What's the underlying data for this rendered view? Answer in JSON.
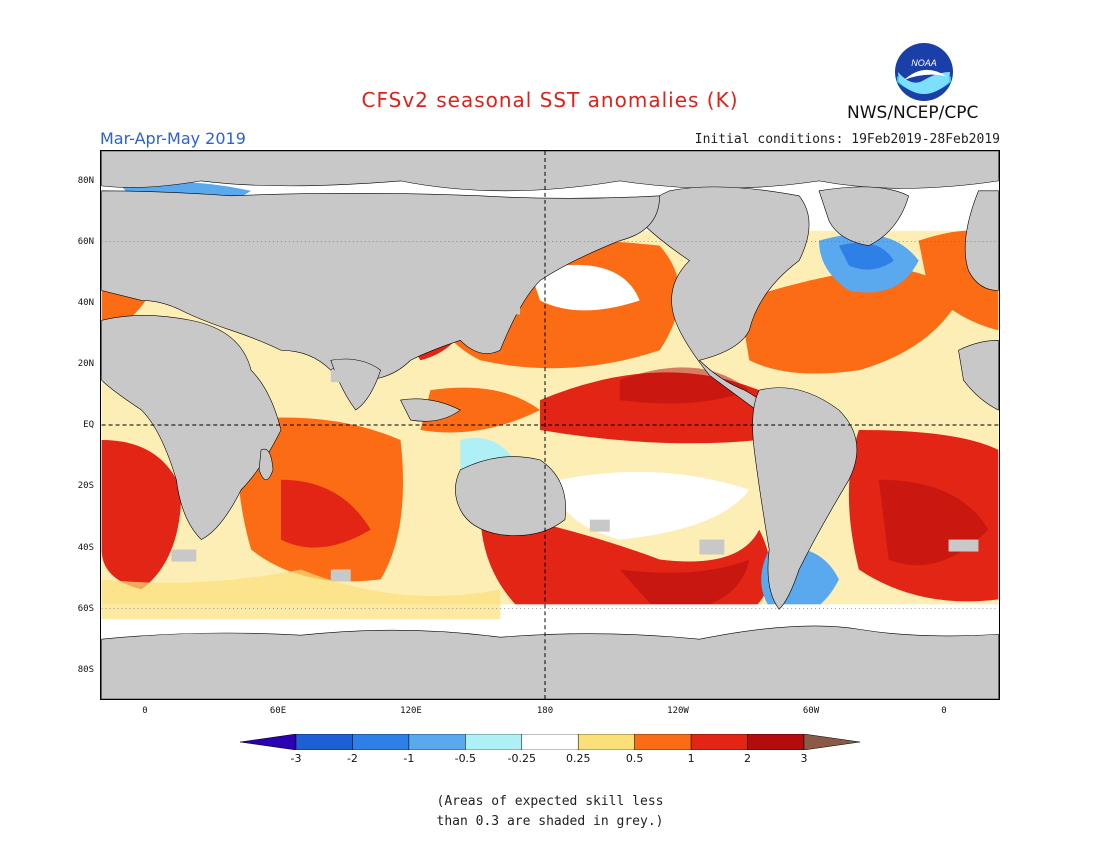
{
  "title": "CFSv2 seasonal SST anomalies (K)",
  "season": "Mar-Apr-May 2019",
  "initial_conditions": "Initial conditions: 19Feb2019-28Feb2019",
  "agency": "NWS/NCEP/CPC",
  "logo_text": "NOAA",
  "map": {
    "lat_labels": [
      "80N",
      "60N",
      "40N",
      "20N",
      "EQ",
      "20S",
      "40S",
      "60S",
      "80S"
    ],
    "lon_labels": [
      "0",
      "60E",
      "120E",
      "180",
      "120W",
      "60W",
      "0"
    ],
    "land_color": "#c8c8c8",
    "skill_mask_color": "#c8c8c8"
  },
  "legend": {
    "levels": [
      "-3",
      "-2",
      "-1",
      "-0.5",
      "-0.25",
      "0.25",
      "0.5",
      "1",
      "2",
      "3"
    ],
    "colors": [
      "#2a00b0",
      "#1e5fd4",
      "#2f80e6",
      "#5aa8ee",
      "#aef0f5",
      "#ffffff",
      "#fbe07a",
      "#fb6c14",
      "#e22514",
      "#b20c0c",
      "#8a5a46"
    ]
  },
  "note_lines": [
    "(Areas of expected skill less",
    "than 0.3 are shaded in grey.)"
  ]
}
